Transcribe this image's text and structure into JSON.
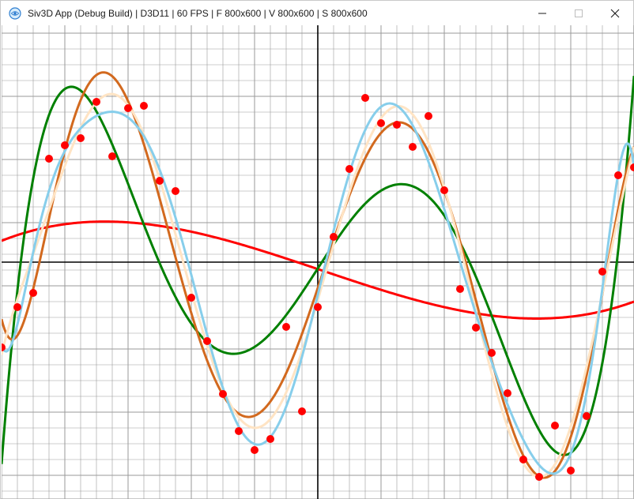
{
  "window": {
    "title": "Siv3D App (Debug Build) | D3D11 | 60 FPS | F 800x600 | V 800x600 | S 800x600",
    "icon": "siv3d-app-icon",
    "controls": [
      "minimize-icon",
      "maximize-icon",
      "close-icon"
    ]
  },
  "colors": {
    "grid": "#9a9a9a",
    "axis": "#000000",
    "points": "#ff0000",
    "series": [
      "#ff0000",
      "#008000",
      "#d2691e",
      "#ffe4c4",
      "#87ceeb"
    ]
  },
  "chart_data": {
    "type": "scatter",
    "title": "",
    "xlabel": "",
    "ylabel": "",
    "xlim": [
      -400,
      400
    ],
    "ylim": [
      -300,
      300
    ],
    "grid": true,
    "points": {
      "x": [
        -400,
        -380,
        -360,
        -340,
        -320,
        -300,
        -280,
        -260,
        -240,
        -220,
        -200,
        -180,
        -160,
        -140,
        -120,
        -100,
        -80,
        -60,
        -40,
        -20,
        0,
        20,
        40,
        60,
        80,
        100,
        120,
        140,
        160,
        180,
        200,
        220,
        240,
        260,
        280,
        300,
        320,
        340,
        360,
        380,
        400
      ],
      "y": [
        -108,
        -57,
        -39,
        131,
        148,
        157,
        203,
        134,
        195,
        198,
        103,
        90,
        -45,
        -100,
        -167,
        -214,
        -238,
        -224,
        -82,
        -189,
        -57,
        32,
        118,
        208,
        176,
        174,
        146,
        185,
        91,
        -34,
        -83,
        -115,
        -166,
        -250,
        -272,
        -207,
        -264,
        -195,
        -12,
        110,
        120
      ]
    },
    "series": [
      {
        "degree": 3,
        "color": "#ff0000"
      },
      {
        "degree": 5,
        "color": "#008000"
      },
      {
        "degree": 7,
        "color": "#d2691e"
      },
      {
        "degree": 9,
        "color": "#ffe4c4"
      },
      {
        "degree": 11,
        "color": "#87ceeb"
      }
    ]
  }
}
